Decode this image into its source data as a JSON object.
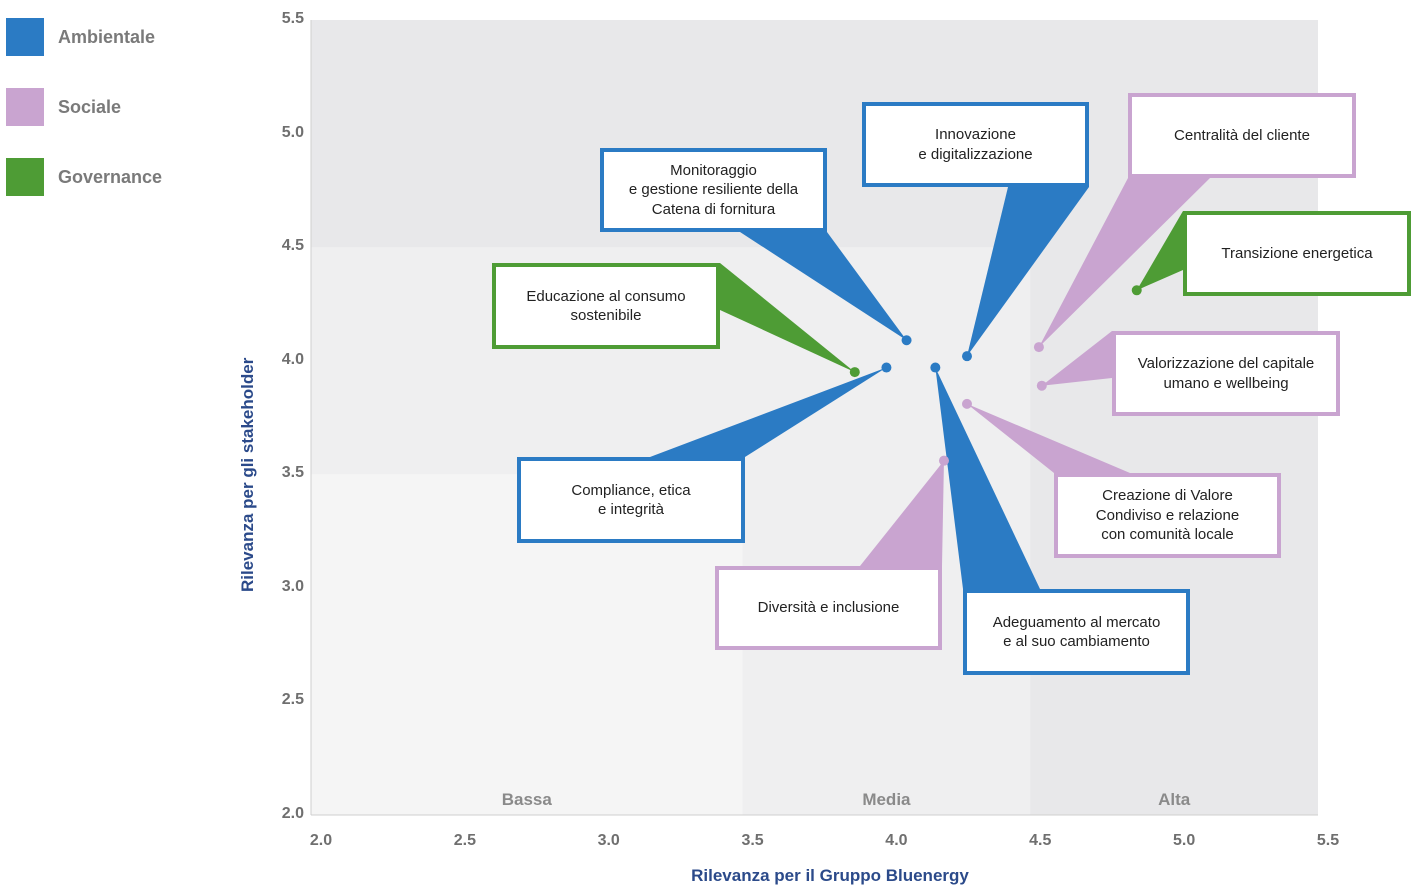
{
  "legend": [
    {
      "label": "Ambientale",
      "color": "#2b7bc4"
    },
    {
      "label": "Sociale",
      "color": "#c9a4d0"
    },
    {
      "label": "Governance",
      "color": "#4e9c35"
    }
  ],
  "chart_data": {
    "type": "scatter",
    "xlabel": "Rilevanza per il Gruppo Bluenergy",
    "ylabel": "Rilevanza per gli stakeholder",
    "xlim": [
      2.0,
      5.5
    ],
    "ylim": [
      2.0,
      5.5
    ],
    "x_ticks": [
      "2.0",
      "2.5",
      "3.0",
      "3.5",
      "4.0",
      "4.5",
      "5.0",
      "5.5"
    ],
    "y_ticks": [
      "2.0",
      "2.5",
      "3.0",
      "3.5",
      "4.0",
      "4.5",
      "5.0",
      "5.5"
    ],
    "zones": [
      {
        "label": "Bassa",
        "x": [
          2.0,
          3.5
        ]
      },
      {
        "label": "Media",
        "x": [
          3.5,
          4.5
        ]
      },
      {
        "label": "Alta",
        "x": [
          4.5,
          5.5
        ]
      }
    ],
    "grid": false,
    "legend_position": "top-left",
    "points": [
      {
        "label": "Innovazione\ne digitalizzazione",
        "category": "Ambientale",
        "x": 4.28,
        "y": 4.02
      },
      {
        "label": "Monitoraggio\ne gestione resiliente della\nCatena di fornitura",
        "category": "Ambientale",
        "x": 4.07,
        "y": 4.09
      },
      {
        "label": "Centralità del cliente",
        "category": "Sociale",
        "x": 4.53,
        "y": 4.06
      },
      {
        "label": "Transizione energetica",
        "category": "Governance",
        "x": 4.87,
        "y": 4.31
      },
      {
        "label": "Educazione al consumo\nsostenibile",
        "category": "Governance",
        "x": 3.89,
        "y": 3.95
      },
      {
        "label": "Valorizzazione del capitale\numano e wellbeing",
        "category": "Sociale",
        "x": 4.54,
        "y": 3.89
      },
      {
        "label": "Compliance, etica\ne integrità",
        "category": "Ambientale",
        "x": 4.0,
        "y": 3.97
      },
      {
        "label": "Adeguamento al mercato\ne al suo cambiamento",
        "category": "Ambientale",
        "x": 4.17,
        "y": 3.97
      },
      {
        "label": "Creazione di Valore\nCondiviso e relazione\ncon comunità locale",
        "category": "Sociale",
        "x": 4.28,
        "y": 3.81
      },
      {
        "label": "Diversità e inclusione",
        "category": "Sociale",
        "x": 4.2,
        "y": 3.56
      }
    ]
  }
}
